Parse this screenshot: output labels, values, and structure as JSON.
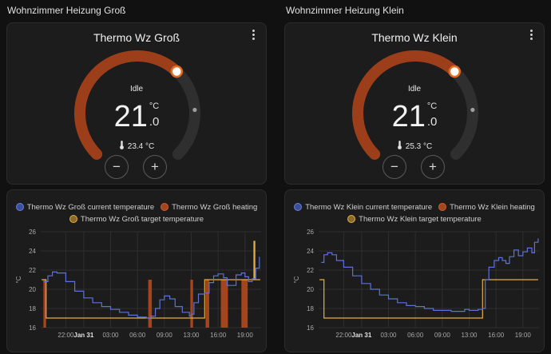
{
  "colors": {
    "heating_arc": "#9c3e19",
    "track": "#2f2f2f",
    "current_line": "#5b72d6",
    "heating_fill": "#a5451e",
    "target_line": "#e5b041"
  },
  "panels": [
    {
      "section_title": "Wohnzimmer Heizung Groß",
      "thermostat": {
        "name": "Thermo Wz Groß",
        "state": "Idle",
        "target_int": "21",
        "target_dec": ".0",
        "unit": "°C",
        "current_temp": "23.4 °C",
        "thermometer_icon": "thermometer-icon",
        "fill_fraction": 0.66,
        "current_fraction": 0.82,
        "minus": "−",
        "plus": "+"
      },
      "legend": [
        "Thermo Wz Groß current temperature",
        "Thermo Wz Groß heating",
        "Thermo Wz Groß target temperature"
      ],
      "chart_data": {
        "type": "line",
        "ylabel": "°C",
        "ylim": [
          16,
          26
        ],
        "yticks": [
          "26",
          "24",
          "22",
          "20",
          "18",
          "16"
        ],
        "xlim": [
          -2.8,
          21.8
        ],
        "xticks": [
          {
            "t": 0,
            "label": "22:00"
          },
          {
            "t": 2,
            "label": "Jan 31"
          },
          {
            "t": 5,
            "label": "03:00"
          },
          {
            "t": 8,
            "label": "06:00"
          },
          {
            "t": 11,
            "label": "09:00"
          },
          {
            "t": 14,
            "label": "13:00"
          },
          {
            "t": 17,
            "label": "16:00"
          },
          {
            "t": 20,
            "label": "19:00"
          }
        ],
        "current_temperature": [
          [
            -2.5,
            20.8
          ],
          [
            -2,
            21.4
          ],
          [
            -1.5,
            21.8
          ],
          [
            -1,
            21.7
          ],
          [
            0,
            20.8
          ],
          [
            1,
            19.8
          ],
          [
            2,
            19.1
          ],
          [
            3,
            18.6
          ],
          [
            4,
            18.2
          ],
          [
            5,
            17.9
          ],
          [
            6,
            17.6
          ],
          [
            7,
            17.3
          ],
          [
            8,
            17.1
          ],
          [
            9,
            17.0
          ],
          [
            9.5,
            17.2
          ],
          [
            10,
            18.0
          ],
          [
            10.5,
            18.9
          ],
          [
            11,
            19.3
          ],
          [
            11.6,
            19.0
          ],
          [
            12.2,
            18.2
          ],
          [
            13,
            17.6
          ],
          [
            13.8,
            17.2
          ],
          [
            14,
            17.4
          ],
          [
            14.3,
            18.6
          ],
          [
            14.8,
            19.5
          ],
          [
            15.5,
            19.6
          ],
          [
            16,
            20.7
          ],
          [
            16.5,
            21.4
          ],
          [
            17,
            21.6
          ],
          [
            17.6,
            21.2
          ],
          [
            18,
            20.4
          ],
          [
            18.5,
            20.4
          ],
          [
            19,
            21.5
          ],
          [
            19.6,
            21.7
          ],
          [
            20,
            21.3
          ],
          [
            20.4,
            20.8
          ],
          [
            20.8,
            21.1
          ],
          [
            21.2,
            22.2
          ],
          [
            21.6,
            23.4
          ]
        ],
        "target_temperature": [
          [
            -2.7,
            21.0
          ],
          [
            -2.2,
            21.0
          ],
          [
            -2.2,
            17.0
          ],
          [
            15.5,
            17.0
          ],
          [
            15.5,
            21.0
          ],
          [
            21.0,
            21.0
          ],
          [
            21.0,
            25.0
          ],
          [
            21.1,
            25.0
          ],
          [
            21.1,
            21.0
          ],
          [
            21.7,
            21.0
          ]
        ],
        "heating": [
          [
            -2.5,
            -2.2
          ],
          [
            9.2,
            9.6
          ],
          [
            13.9,
            14.2
          ],
          [
            15.6,
            16.0
          ],
          [
            17.3,
            18.1
          ],
          [
            19.6,
            20.3
          ]
        ]
      }
    },
    {
      "section_title": "Wohnzimmer Heizung Klein",
      "thermostat": {
        "name": "Thermo Wz Klein",
        "state": "Idle",
        "target_int": "21",
        "target_dec": ".0",
        "unit": "°C",
        "current_temp": "25.3 °C",
        "thermometer_icon": "thermometer-icon",
        "fill_fraction": 0.66,
        "current_fraction": 0.82,
        "minus": "−",
        "plus": "+"
      },
      "legend": [
        "Thermo Wz Klein current temperature",
        "Thermo Wz Klein heating",
        "Thermo Wz Klein target temperature"
      ],
      "chart_data": {
        "type": "line",
        "ylabel": "°C",
        "ylim": [
          16,
          26
        ],
        "yticks": [
          "26",
          "24",
          "22",
          "20",
          "18",
          "16"
        ],
        "xlim": [
          -2.8,
          21.8
        ],
        "xticks": [
          {
            "t": 0,
            "label": "22:00"
          },
          {
            "t": 2,
            "label": "Jan 31"
          },
          {
            "t": 5,
            "label": "03:00"
          },
          {
            "t": 8,
            "label": "06:00"
          },
          {
            "t": 11,
            "label": "09:00"
          },
          {
            "t": 14,
            "label": "13:00"
          },
          {
            "t": 17,
            "label": "16:00"
          },
          {
            "t": 20,
            "label": "19:00"
          }
        ],
        "current_temperature": [
          [
            -2.5,
            22.8
          ],
          [
            -2.2,
            23.6
          ],
          [
            -1.8,
            23.8
          ],
          [
            -1.3,
            23.6
          ],
          [
            -0.8,
            23.0
          ],
          [
            0,
            22.3
          ],
          [
            1,
            21.4
          ],
          [
            2,
            20.6
          ],
          [
            3,
            20.0
          ],
          [
            4,
            19.4
          ],
          [
            5,
            19.0
          ],
          [
            6,
            18.6
          ],
          [
            7,
            18.3
          ],
          [
            8,
            18.2
          ],
          [
            9,
            18.0
          ],
          [
            10,
            17.8
          ],
          [
            11,
            17.8
          ],
          [
            12,
            17.7
          ],
          [
            13,
            17.7
          ],
          [
            13.5,
            17.9
          ],
          [
            14,
            17.8
          ],
          [
            15,
            17.9
          ],
          [
            15.5,
            18.0
          ],
          [
            15.8,
            21.0
          ],
          [
            16.2,
            22.3
          ],
          [
            16.8,
            23.0
          ],
          [
            17.3,
            23.3
          ],
          [
            17.7,
            23.0
          ],
          [
            18.1,
            22.7
          ],
          [
            18.5,
            23.4
          ],
          [
            19,
            24.1
          ],
          [
            19.5,
            23.5
          ],
          [
            20,
            23.9
          ],
          [
            20.5,
            24.3
          ],
          [
            21,
            23.8
          ],
          [
            21.3,
            24.9
          ],
          [
            21.7,
            25.3
          ]
        ],
        "target_temperature": [
          [
            -2.7,
            21.0
          ],
          [
            -2.2,
            21.0
          ],
          [
            -2.2,
            17.0
          ],
          [
            15.5,
            17.0
          ],
          [
            15.5,
            21.0
          ],
          [
            21.7,
            21.0
          ]
        ],
        "heating": []
      }
    }
  ]
}
